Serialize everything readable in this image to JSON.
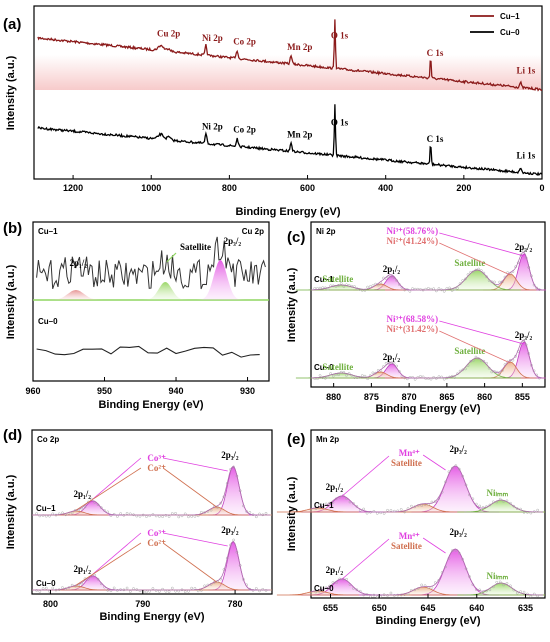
{
  "chart_data": [
    {
      "id": "a",
      "type": "line",
      "panel_label": "(a)",
      "xlabel": "Binding Energy (eV)",
      "ylabel": "Intensity (a.u.)",
      "xlim": [
        1300,
        0
      ],
      "x_ticks": [
        "1200",
        "1000",
        "800",
        "600",
        "400",
        "200",
        "0"
      ],
      "legend": [
        {
          "name": "Cu–1",
          "color": "#8b1a1a"
        },
        {
          "name": "Cu–0",
          "color": "#000000"
        }
      ],
      "peak_labels": [
        {
          "text": "Cu 2p",
          "x": 975,
          "series": "Cu–1",
          "color": "#8b1a1a"
        },
        {
          "text": "Ni 2p",
          "x": 860,
          "series": "Cu–1",
          "color": "#8b1a1a"
        },
        {
          "text": "Co 2p",
          "x": 780,
          "series": "Cu–1",
          "color": "#8b1a1a"
        },
        {
          "text": "Mn 2p",
          "x": 642,
          "series": "Cu–1",
          "color": "#8b1a1a"
        },
        {
          "text": "O 1s",
          "x": 530,
          "series": "Cu–1",
          "color": "#8b1a1a"
        },
        {
          "text": "C 1s",
          "x": 285,
          "series": "Cu–1",
          "color": "#8b1a1a"
        },
        {
          "text": "Li 1s",
          "x": 55,
          "series": "Cu–1",
          "color": "#8b1a1a"
        },
        {
          "text": "Ni 2p",
          "x": 860,
          "series": "Cu–0",
          "color": "#000000"
        },
        {
          "text": "Co 2p",
          "x": 780,
          "series": "Cu–0",
          "color": "#000000"
        },
        {
          "text": "Mn 2p",
          "x": 642,
          "series": "Cu–0",
          "color": "#000000"
        },
        {
          "text": "O 1s",
          "x": 530,
          "series": "Cu–0",
          "color": "#000000"
        },
        {
          "text": "C 1s",
          "x": 285,
          "series": "Cu–0",
          "color": "#000000"
        },
        {
          "text": "Li 1s",
          "x": 55,
          "series": "Cu–0",
          "color": "#000000"
        }
      ]
    },
    {
      "id": "b",
      "type": "line",
      "panel_label": "(b)",
      "title_left": "Cu–1",
      "title_right": "Cu 2p",
      "lower_label": "Cu–0",
      "xlabel": "Binding Energy (eV)",
      "ylabel": "Intensity (a.u.)",
      "xlim": [
        960,
        927
      ],
      "x_ticks": [
        "960",
        "950",
        "940",
        "930"
      ],
      "annotations": [
        {
          "text": "2p₁/₂",
          "x": 953.5
        },
        {
          "text": "Satellite",
          "x": 940
        },
        {
          "text": "2p₃/₂",
          "x": 932.5
        }
      ]
    },
    {
      "id": "c",
      "type": "line",
      "panel_label": "(c)",
      "title": "Ni 2p",
      "xlabel": "Binding Energy (eV)",
      "ylabel": "Intensity (a.u.)",
      "xlim": [
        883,
        852
      ],
      "x_ticks": [
        "880",
        "875",
        "870",
        "865",
        "860",
        "855"
      ],
      "samples": [
        {
          "name": "Cu–1",
          "ni3": "Ni³⁺(58.76%)",
          "ni2": "Ni²⁺(41.24%)"
        },
        {
          "name": "Cu–0",
          "ni3": "Ni³⁺(68.58%)",
          "ni2": "Ni²⁺(31.42%)"
        }
      ],
      "peak_names": [
        "2p₁/₂",
        "2p₃/₂",
        "Satellite"
      ]
    },
    {
      "id": "d",
      "type": "line",
      "panel_label": "(d)",
      "title": "Co 2p",
      "xlabel": "Binding Energy (eV)",
      "ylabel": "Intensity (a.u.)",
      "xlim": [
        802,
        776
      ],
      "x_ticks": [
        "800",
        "790",
        "780"
      ],
      "samples": [
        "Cu–1",
        "Cu–0"
      ],
      "species": [
        "Co³⁺",
        "Co²⁺"
      ],
      "peak_names": [
        "2p₁/₂",
        "2p₃/₂"
      ]
    },
    {
      "id": "e",
      "type": "line",
      "panel_label": "(e)",
      "title": "Mn 2p",
      "xlabel": "Binding Energy (eV)",
      "ylabel": "Intensity (a.u.)",
      "xlim": [
        657,
        633
      ],
      "x_ticks": [
        "655",
        "650",
        "645",
        "640",
        "635"
      ],
      "samples": [
        "Cu–1",
        "Cu–0"
      ],
      "species": [
        "Mn⁴⁺",
        "Satellite",
        "Niₗₘₘ"
      ],
      "peak_names": [
        "2p₁/₂",
        "2p₃/₂"
      ]
    }
  ]
}
